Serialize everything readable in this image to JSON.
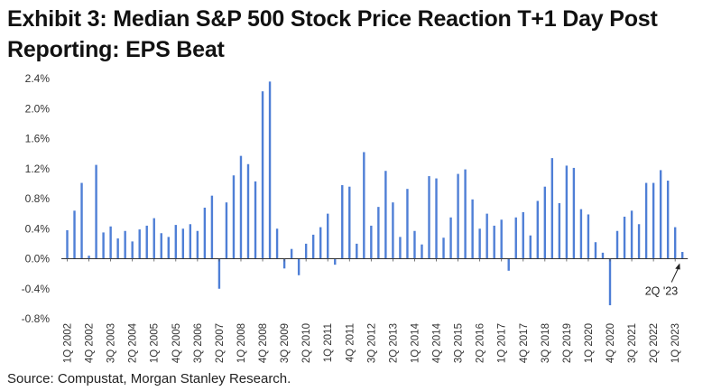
{
  "title": "Exhibit 3: Median S&P 500 Stock Price Reaction T+1 Day Post Reporting: EPS Beat",
  "source": "Source: Compustat, Morgan Stanley Research.",
  "chart_data": {
    "type": "bar",
    "title": "Exhibit 3: Median S&P 500 Stock Price Reaction T+1 Day Post Reporting: EPS Beat",
    "xlabel": "",
    "ylabel": "",
    "ylim": [
      -0.8,
      2.4
    ],
    "yticks": [
      2.4,
      2.0,
      1.6,
      1.2,
      0.8,
      0.4,
      0.0,
      -0.4,
      -0.8
    ],
    "ytick_labels": [
      "2.4%",
      "2.0%",
      "1.6%",
      "1.2%",
      "0.8%",
      "0.4%",
      "0.0%",
      "-0.4%",
      "-0.8%"
    ],
    "bar_color": "#4f7fd6",
    "grid": false,
    "start": {
      "year": 2002,
      "quarter": 1
    },
    "xtick_labels": [
      "1Q 2002",
      "4Q 2002",
      "3Q 2003",
      "2Q 2004",
      "1Q 2005",
      "4Q 2005",
      "3Q 2006",
      "2Q 2007",
      "1Q 2008",
      "4Q 2008",
      "3Q 2009",
      "2Q 2010",
      "1Q 2011",
      "4Q 2011",
      "3Q 2012",
      "2Q 2013",
      "1Q 2014",
      "4Q 2014",
      "3Q 2015",
      "2Q 2016",
      "1Q 2017",
      "4Q 2017",
      "3Q 2018",
      "2Q 2019",
      "1Q 2020",
      "4Q 2020",
      "3Q 2021",
      "2Q 2022",
      "1Q 2023"
    ],
    "values": [
      0.38,
      0.64,
      1.01,
      0.04,
      1.25,
      0.35,
      0.43,
      0.27,
      0.37,
      0.23,
      0.39,
      0.44,
      0.54,
      0.34,
      0.29,
      0.45,
      0.4,
      0.46,
      0.37,
      0.68,
      0.84,
      -0.4,
      0.75,
      1.11,
      1.37,
      1.26,
      1.03,
      2.23,
      2.36,
      0.4,
      -0.13,
      0.13,
      -0.22,
      0.2,
      0.32,
      0.42,
      0.6,
      -0.08,
      0.98,
      0.96,
      0.2,
      1.42,
      0.44,
      0.69,
      1.17,
      0.75,
      0.29,
      0.93,
      0.37,
      0.19,
      1.1,
      1.07,
      0.28,
      0.55,
      1.13,
      1.19,
      0.79,
      0.4,
      0.6,
      0.44,
      0.52,
      -0.16,
      0.55,
      0.62,
      0.31,
      0.77,
      0.96,
      1.34,
      0.74,
      1.24,
      1.21,
      0.66,
      0.59,
      0.22,
      0.08,
      -0.62,
      0.37,
      0.56,
      0.64,
      0.46,
      1.01,
      1.01,
      1.18,
      1.04,
      0.42,
      0.09
    ],
    "annotation": {
      "text": "2Q '23",
      "target": "2Q 2023"
    }
  }
}
